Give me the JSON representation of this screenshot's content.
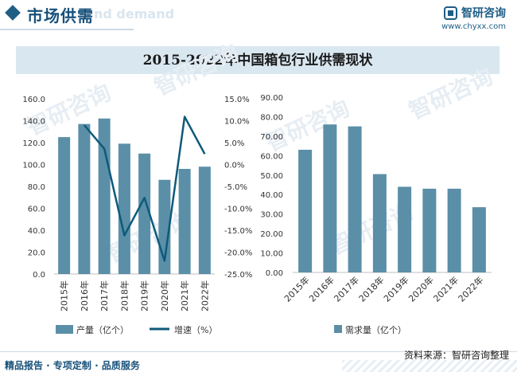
{
  "header": {
    "title": "市场供需",
    "ghost": "nd demand",
    "logo_text": "智研咨询",
    "website": "www.chyxx.com"
  },
  "title": "2015-2022年中国箱包行业供需现状",
  "watermark": "智研咨询",
  "footer": {
    "left": "精品报告 · 专项定制 · 品质服务",
    "source": "资料来源：智研咨询整理"
  },
  "colors": {
    "bar": "#5b8fa8",
    "line": "#0e5a7a",
    "header": "#17507a",
    "title_bg": "#d9e7f0"
  },
  "chart_data": [
    {
      "type": "bar",
      "categories": [
        "2015年",
        "2016年",
        "2017年",
        "2018年",
        "2019年",
        "2020年",
        "2021年",
        "2022年"
      ],
      "series": [
        {
          "name": "产量（亿个）",
          "type": "bar",
          "axis": "left",
          "values": [
            125,
            137,
            142,
            119,
            110,
            86,
            96,
            98
          ]
        },
        {
          "name": "增速（%）",
          "type": "line",
          "axis": "right",
          "values": [
            null,
            9,
            3.6,
            -16.2,
            -7.6,
            -22,
            10.9,
            2.4
          ]
        }
      ],
      "yticks": [
        "0.0",
        "20.0",
        "40.0",
        "60.0",
        "80.0",
        "100.0",
        "120.0",
        "140.0",
        "160.0"
      ],
      "ylim": [
        0,
        160
      ],
      "y2ticks": [
        "-25.0%",
        "-20.0%",
        "-15.0%",
        "-10.0%",
        "-5.0%",
        "0.0%",
        "5.0%",
        "10.0%",
        "15.0%"
      ],
      "y2lim": [
        -25,
        15
      ],
      "legend": [
        "产量（亿个）",
        "增速（%）"
      ],
      "legend_position": "bottom"
    },
    {
      "type": "bar",
      "categories": [
        "2015年",
        "2016年",
        "2017年",
        "2018年",
        "2019年",
        "2020年",
        "2021年",
        "2022年"
      ],
      "series": [
        {
          "name": "需求量（亿个）",
          "values": [
            63,
            76,
            75,
            50.5,
            44,
            43,
            43,
            33.5
          ]
        }
      ],
      "yticks": [
        "0.00",
        "10.00",
        "20.00",
        "30.00",
        "40.00",
        "50.00",
        "60.00",
        "70.00",
        "80.00",
        "90.00"
      ],
      "ylim": [
        0,
        90
      ],
      "legend": [
        "需求量（亿个）"
      ],
      "legend_position": "bottom"
    }
  ]
}
